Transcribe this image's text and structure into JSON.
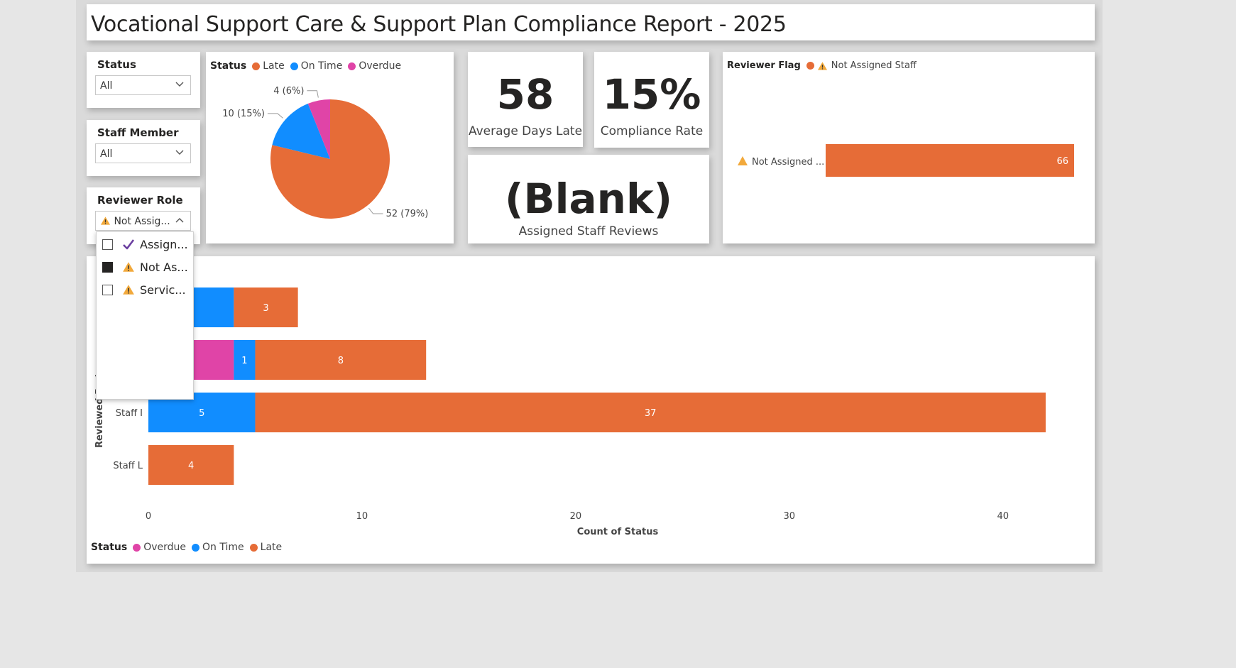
{
  "report": {
    "title": "Vocational Support Care & Support Plan Compliance Report - 2025"
  },
  "slicers": {
    "status": {
      "label": "Status",
      "value": "All"
    },
    "staff_member": {
      "label": "Staff Member",
      "value": "All"
    },
    "reviewer_role": {
      "label": "Reviewer Role",
      "value": "Not Assig...",
      "options": [
        {
          "label": "Assign...",
          "checked": false,
          "icon": "check-icon"
        },
        {
          "label": "Not As...",
          "checked": true,
          "icon": "warning-icon"
        },
        {
          "label": "Servic...",
          "checked": false,
          "icon": "warning-icon"
        }
      ]
    }
  },
  "kpis": {
    "avg_days_late": {
      "value": "58",
      "label": "Average Days Late"
    },
    "compliance_rate": {
      "value": "15%",
      "label": "Compliance Rate"
    },
    "assigned_staff_reviews": {
      "value": "(Blank)",
      "label": "Assigned Staff Reviews"
    }
  },
  "colors": {
    "late": "#e66c37",
    "on_time": "#118dff",
    "overdue": "#e044a7",
    "warning": "#f2a93b",
    "check": "#6b3fa0"
  },
  "pie_legend": {
    "title": "Status",
    "items": [
      "Late",
      "On Time",
      "Overdue"
    ]
  },
  "reviewer_flag_legend": {
    "title": "Reviewer Flag",
    "item": "Not Assigned Staff"
  },
  "bar_legend": {
    "title": "Status",
    "items": [
      "Overdue",
      "On Time",
      "Late"
    ]
  },
  "chart_data": [
    {
      "type": "pie",
      "legend_title": "Status",
      "categories": [
        "Late",
        "On Time",
        "Overdue"
      ],
      "values": [
        52,
        10,
        4
      ],
      "data_labels": [
        "52 (79%)",
        "10 (15%)",
        "4 (6%)"
      ]
    },
    {
      "type": "bar",
      "orientation": "horizontal",
      "legend_title": "Reviewer Flag",
      "categories": [
        "Not Assigned ..."
      ],
      "series": [
        {
          "name": "Not Assigned Staff",
          "values": [
            66
          ]
        }
      ],
      "xlim": [
        0,
        66
      ]
    },
    {
      "type": "bar",
      "orientation": "horizontal",
      "stacked": true,
      "ylabel": "Reviewed By (",
      "xlabel": "Count of Status",
      "xlim": [
        0,
        43
      ],
      "xticks": [
        0,
        10,
        20,
        30,
        40
      ],
      "categories": [
        "",
        "",
        "Staff I",
        "Staff L"
      ],
      "series": [
        {
          "name": "Overdue",
          "values": [
            0,
            4,
            0,
            0
          ],
          "labels": [
            "",
            "",
            "",
            ""
          ]
        },
        {
          "name": "On Time",
          "values": [
            4,
            1,
            5,
            0
          ],
          "labels": [
            "",
            "1",
            "5",
            ""
          ]
        },
        {
          "name": "Late",
          "values": [
            3,
            8,
            37,
            4
          ],
          "labels": [
            "3",
            "8",
            "37",
            "4"
          ]
        }
      ]
    }
  ]
}
